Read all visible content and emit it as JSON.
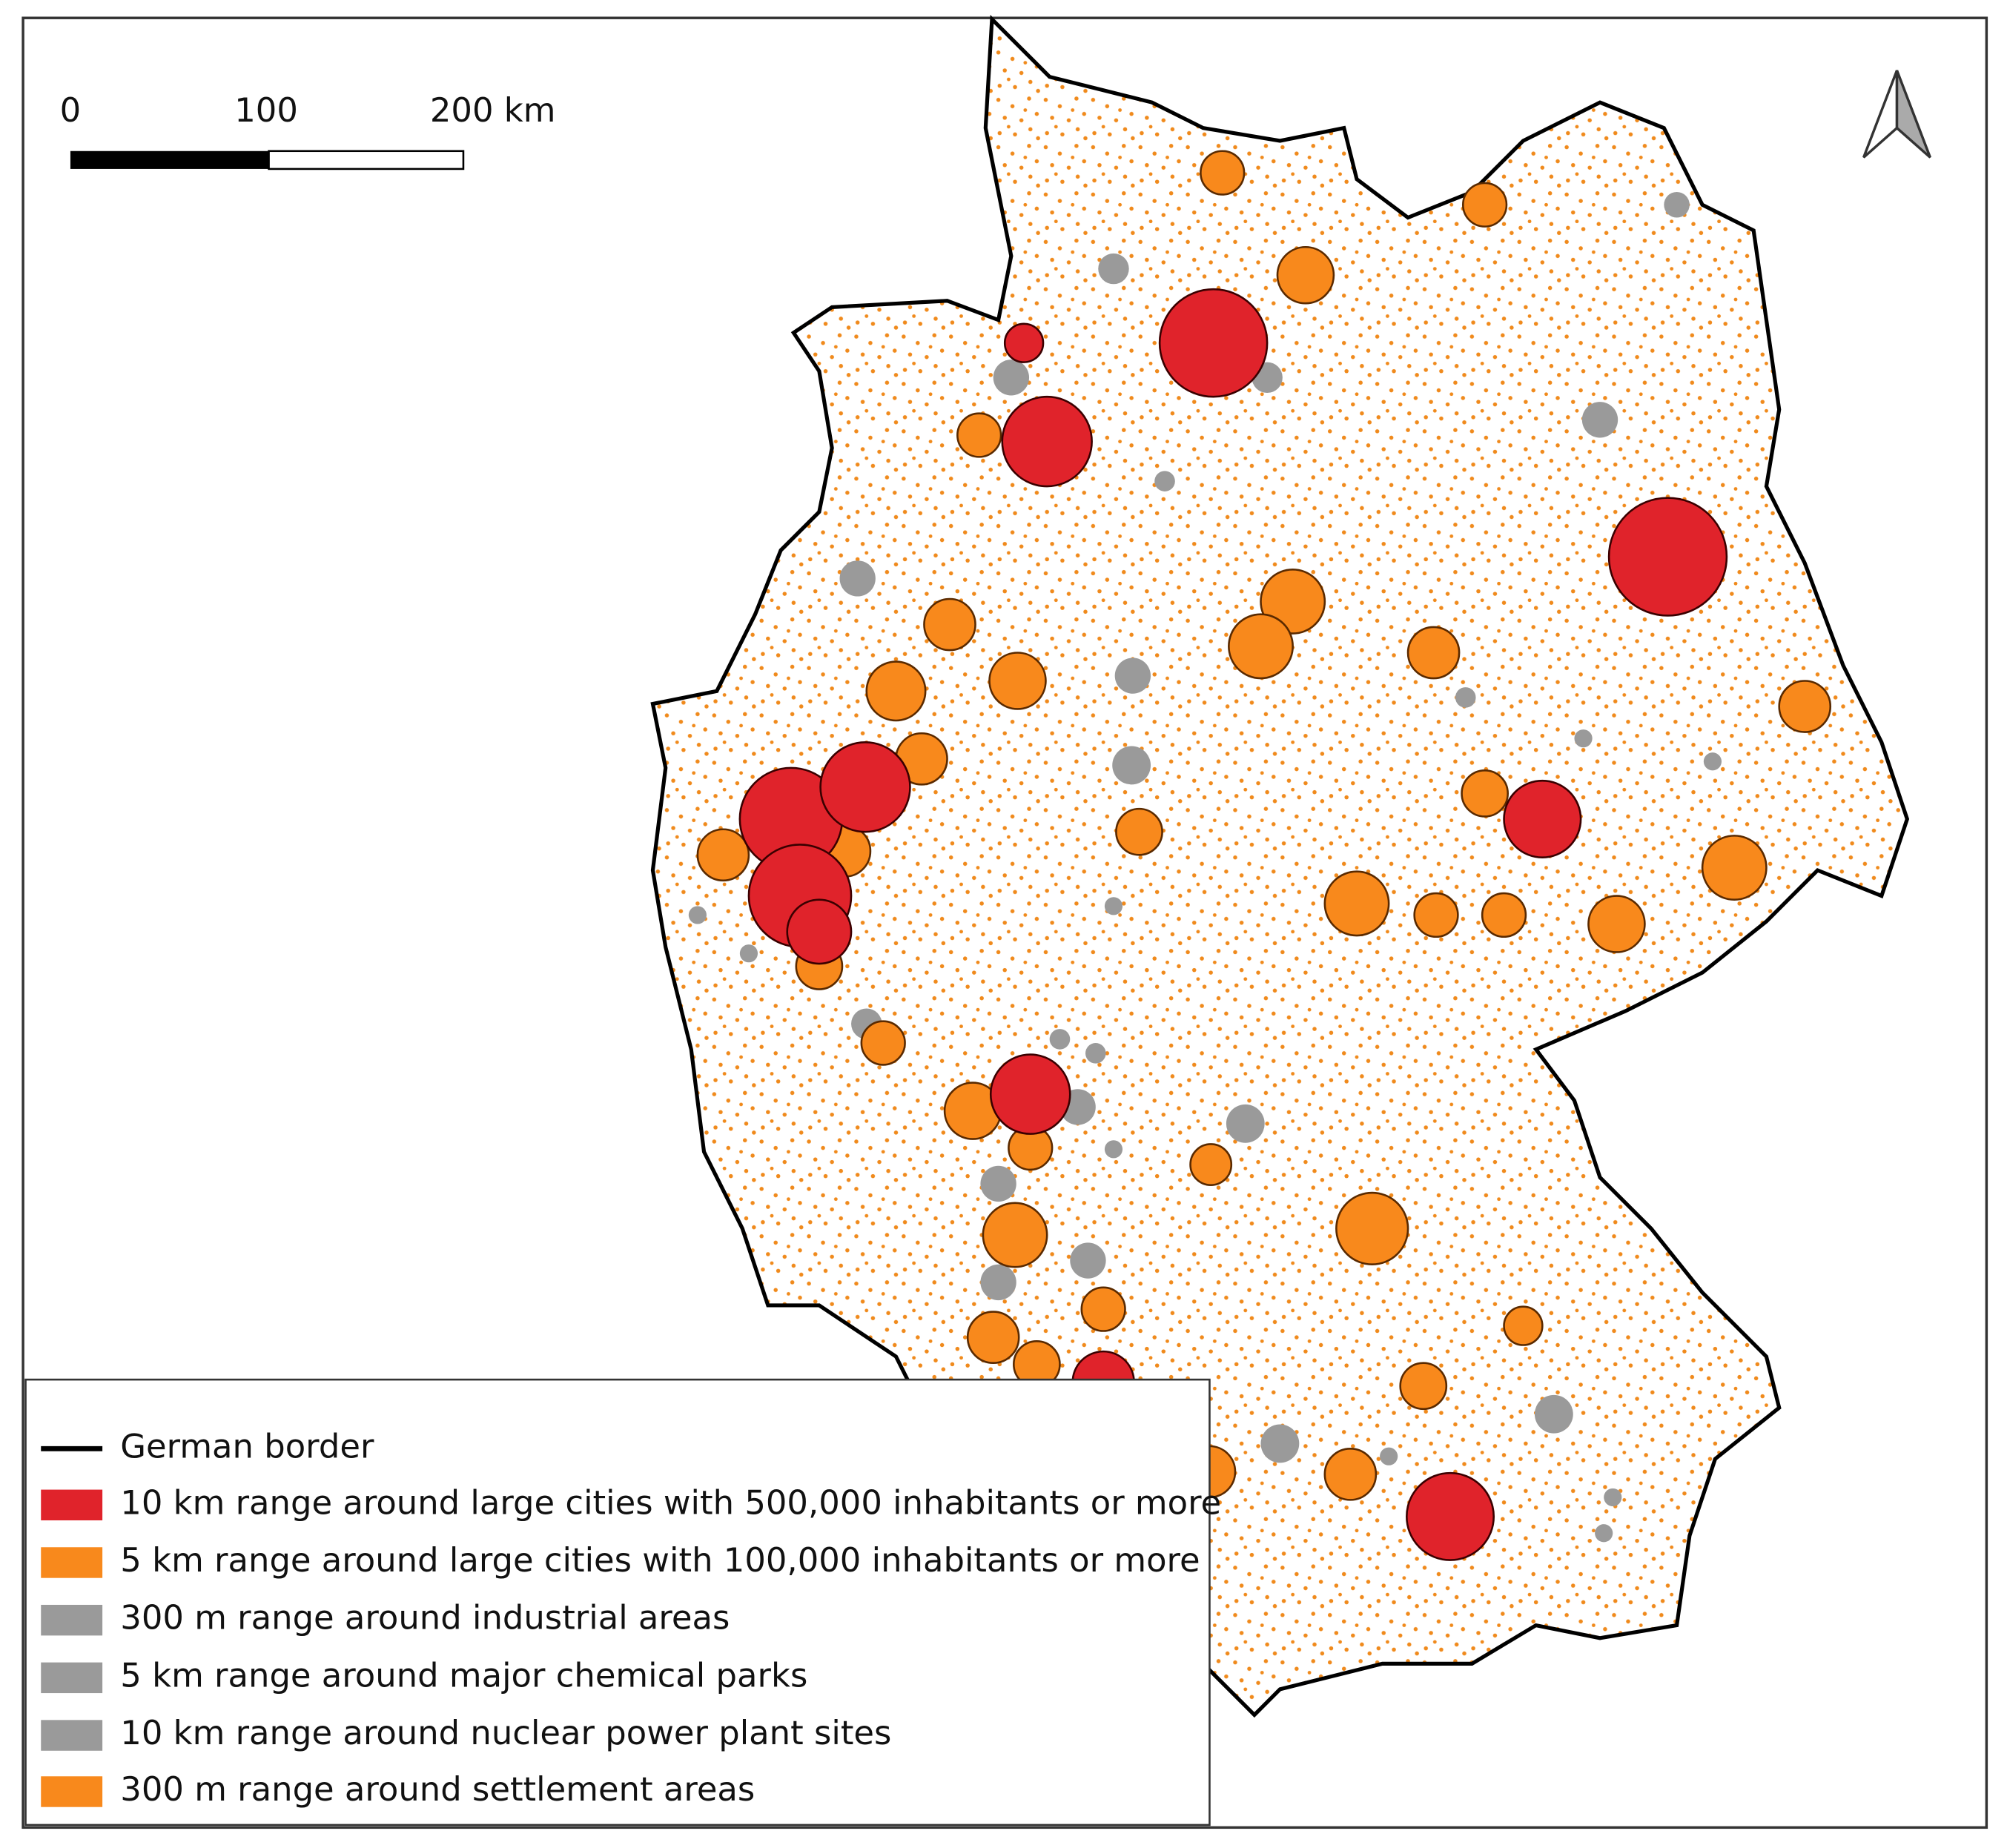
{
  "scale_bar": {
    "labels": [
      "0",
      "100",
      "200 km"
    ]
  },
  "legend": {
    "items": [
      "German border",
      "10 km range around large cities with 500,000 inhabitants or more",
      "5 km range around large cities with 100,000 inhabitants or more",
      "300 m range around industrial areas",
      "5 km range around major chemical parks",
      "10 km range around nuclear power plant sites",
      "300 m range around settlement areas"
    ]
  }
}
